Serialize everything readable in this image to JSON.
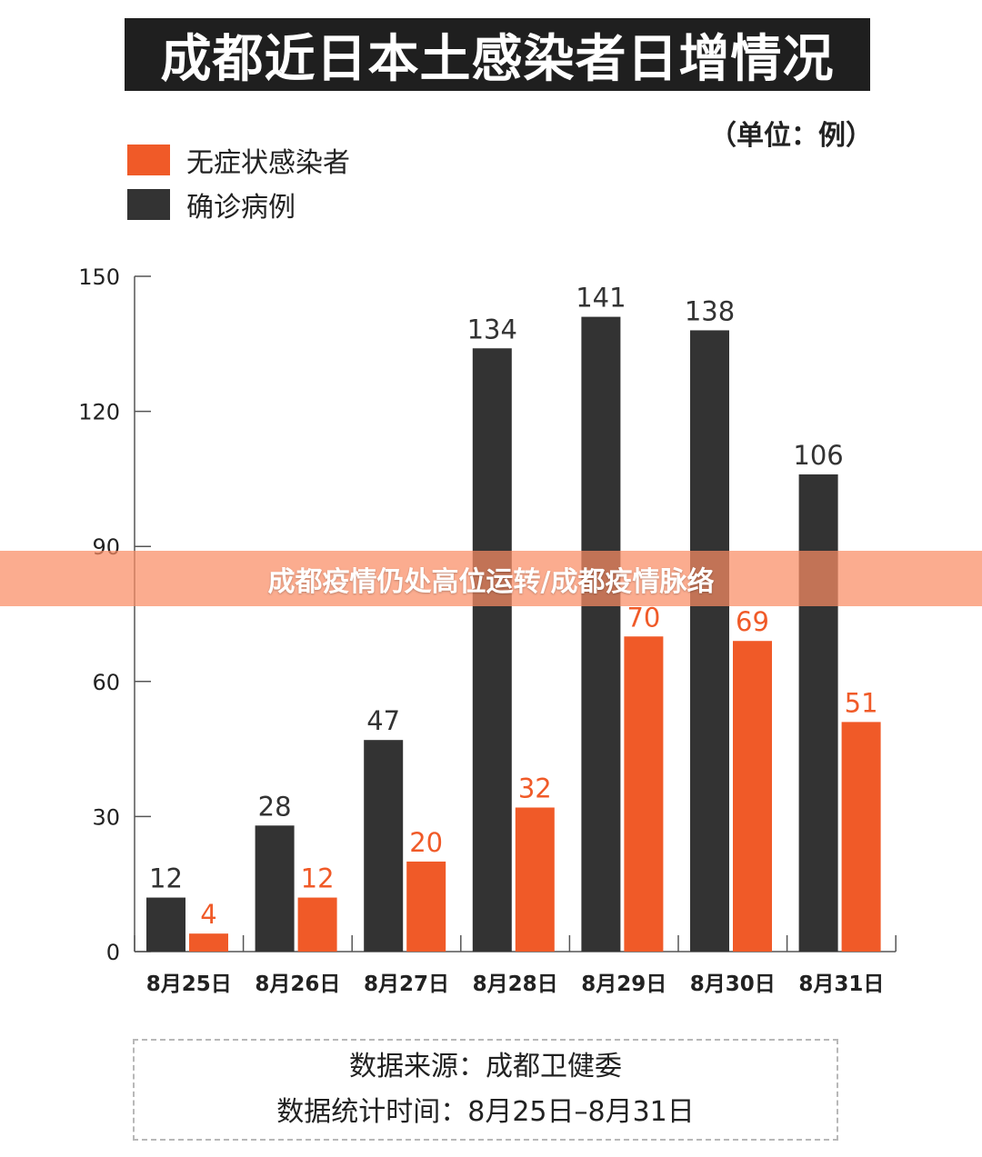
{
  "header": {
    "title": "成都近日本土感染者日增情况"
  },
  "unit_label": "（单位：例）",
  "legend": [
    {
      "label": "无症状感染者",
      "color": "#f05a28"
    },
    {
      "label": "确诊病例",
      "color": "#333333"
    }
  ],
  "chart_data": {
    "type": "bar",
    "categories": [
      "8月25日",
      "8月26日",
      "8月27日",
      "8月28日",
      "8月29日",
      "8月30日",
      "8月31日"
    ],
    "series": [
      {
        "name": "确诊病例",
        "values": [
          12,
          28,
          47,
          134,
          141,
          138,
          106
        ],
        "color": "#333333"
      },
      {
        "name": "无症状感染者",
        "values": [
          4,
          12,
          20,
          32,
          70,
          69,
          51
        ],
        "color": "#f05a28"
      }
    ],
    "yticks": [
      0,
      30,
      60,
      90,
      120,
      150
    ],
    "ylim": [
      0,
      150
    ],
    "grid": false
  },
  "source": {
    "line1": "数据来源：成都卫健委",
    "line2": "数据统计时间：8月25日–8月31日"
  },
  "banner": {
    "text": "成都疫情仍处高位运转/成都疫情脉络"
  }
}
